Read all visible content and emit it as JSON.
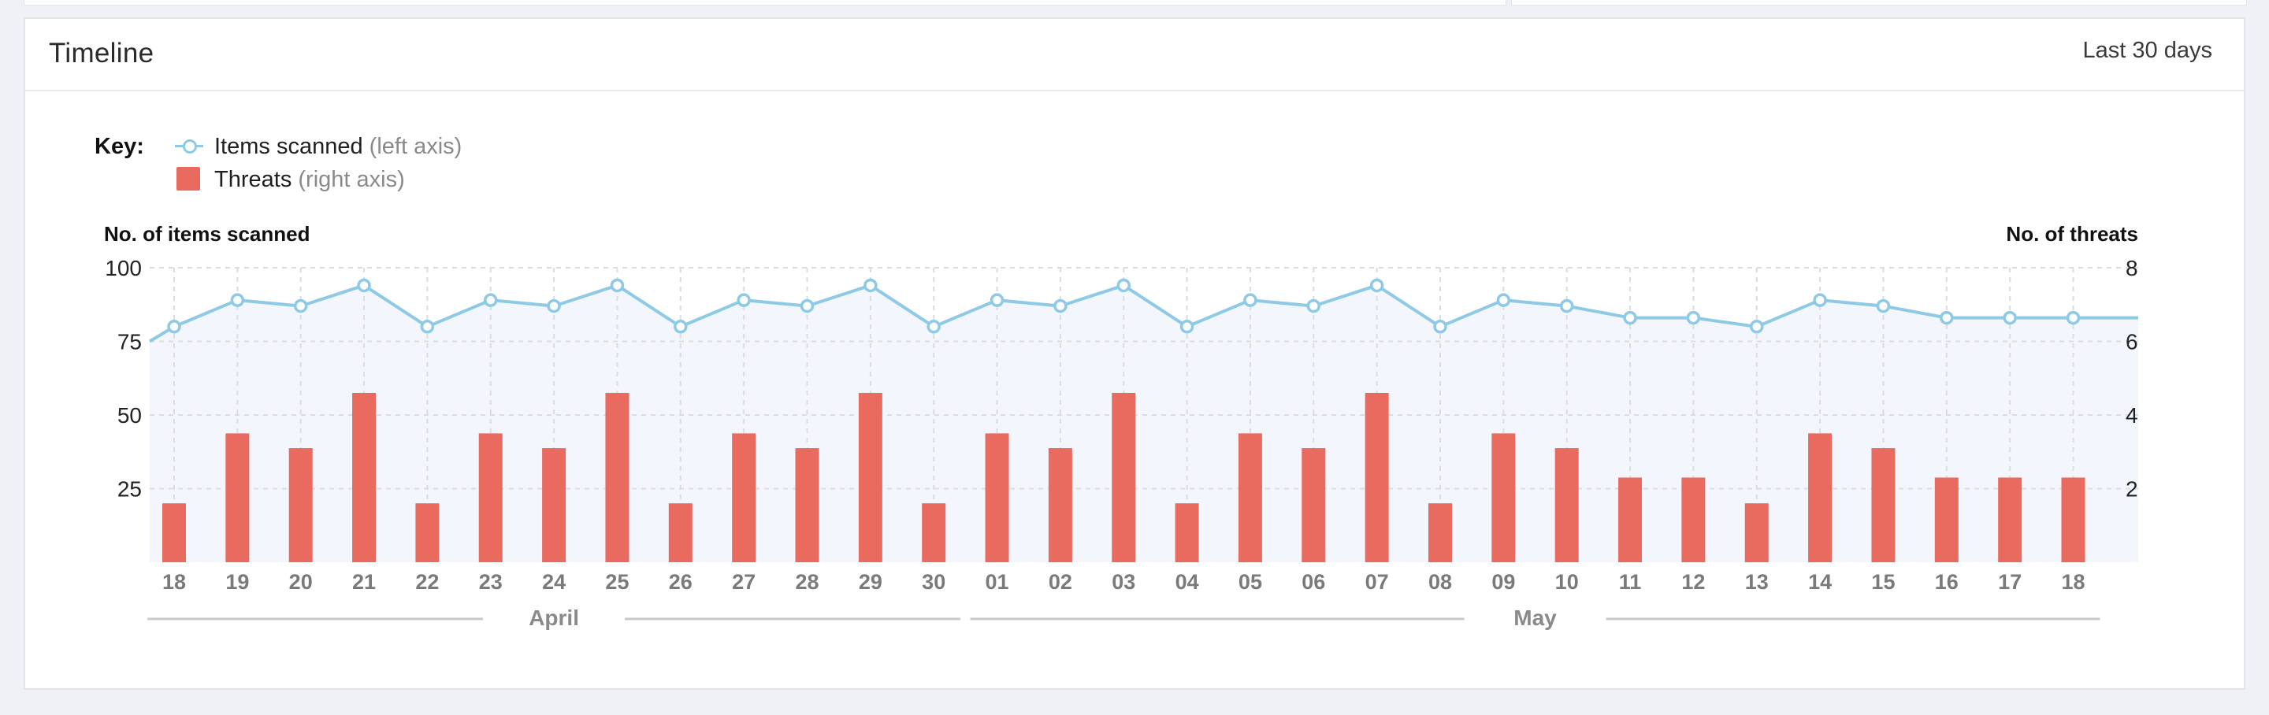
{
  "card": {
    "title": "Timeline",
    "range": "Last 30 days"
  },
  "legend": {
    "key_label": "Key:",
    "items": [
      {
        "name": "Items scanned",
        "note": "(left axis)",
        "icon": "line-marker-icon"
      },
      {
        "name": "Threats",
        "note": "(right axis)",
        "icon": "bar-swatch-icon"
      }
    ]
  },
  "colors": {
    "line": "#8ecae6",
    "bar": "#e96b60",
    "area": "#f3f7fd",
    "grid": "#dcdcdc",
    "tick": "#7a7a7a"
  },
  "chart_data": {
    "type": "bar",
    "ylabel_left": "No. of items scanned",
    "ylabel_right": "No. of threats",
    "ylim_left": [
      0,
      100
    ],
    "ylim_right": [
      0,
      8
    ],
    "yticks_left": [
      25,
      50,
      75,
      100
    ],
    "yticks_right": [
      2,
      4,
      6,
      8
    ],
    "grid": true,
    "legend_position": "top-left",
    "categories": [
      "18",
      "19",
      "20",
      "21",
      "22",
      "23",
      "24",
      "25",
      "26",
      "27",
      "28",
      "29",
      "30",
      "01",
      "02",
      "03",
      "04",
      "05",
      "06",
      "07",
      "08",
      "09",
      "10",
      "11",
      "12",
      "13",
      "14",
      "15",
      "16",
      "17",
      "18"
    ],
    "month_groups": [
      {
        "label": "April",
        "start": 0,
        "end": 12
      },
      {
        "label": "May",
        "start": 13,
        "end": 30
      }
    ],
    "series": [
      {
        "name": "Items scanned",
        "axis": "left",
        "kind": "line",
        "values": [
          80,
          89,
          87,
          94,
          80,
          89,
          87,
          94,
          80,
          89,
          87,
          94,
          80,
          89,
          87,
          94,
          80,
          89,
          87,
          94,
          80,
          89,
          87,
          83,
          83,
          80,
          89,
          87,
          83,
          83,
          83
        ],
        "leading_value": 75,
        "trailing_value": 83
      },
      {
        "name": "Threats",
        "axis": "right",
        "kind": "bar",
        "values": [
          1.6,
          3.5,
          3.1,
          4.6,
          1.6,
          3.5,
          3.1,
          4.6,
          1.6,
          3.5,
          3.1,
          4.6,
          1.6,
          3.5,
          3.1,
          4.6,
          1.6,
          3.5,
          3.1,
          4.6,
          1.6,
          3.5,
          3.1,
          2.3,
          2.3,
          1.6,
          3.5,
          3.1,
          2.3,
          2.3,
          2.3
        ]
      }
    ]
  }
}
